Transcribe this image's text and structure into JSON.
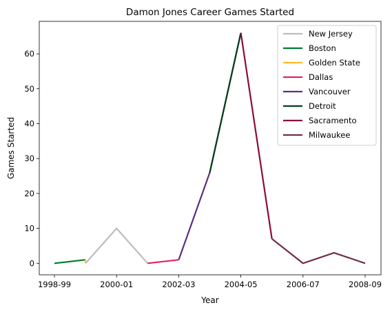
{
  "chart_data": {
    "type": "line",
    "title": "Damon Jones Career Games Started",
    "xlabel": "Year",
    "ylabel": "Games Started",
    "x_ticks": [
      "1998-99",
      "2000-01",
      "2002-03",
      "2004-05",
      "2006-07",
      "2008-09"
    ],
    "y_ticks": [
      0,
      10,
      20,
      30,
      40,
      50,
      60
    ],
    "ylim": [
      -3.3,
      69.3
    ],
    "grid": false,
    "legend_position": "top-right",
    "series": [
      {
        "name": "New Jersey",
        "color": "#BDBDBD",
        "points": [
          {
            "season": "1999-00",
            "value": 0
          },
          {
            "season": "2000-01",
            "value": 10
          },
          {
            "season": "2001-02",
            "value": 0
          }
        ]
      },
      {
        "name": "Boston",
        "color": "#007A33",
        "points": [
          {
            "season": "1998-99",
            "value": 0
          },
          {
            "season": "1999-00",
            "value": 1
          }
        ]
      },
      {
        "name": "Golden State",
        "color": "#FDB927",
        "points": [
          {
            "season": "1999-00",
            "value": 1
          },
          {
            "season": "1999-00",
            "value": 0
          }
        ]
      },
      {
        "name": "Dallas",
        "color": "#E0245E",
        "points": [
          {
            "season": "2001-02",
            "value": 0
          },
          {
            "season": "2002-03",
            "value": 1
          }
        ]
      },
      {
        "name": "Vancouver",
        "color": "#5C2D82",
        "points": [
          {
            "season": "2002-03",
            "value": 1
          },
          {
            "season": "2003-04",
            "value": 26
          },
          {
            "season": "2004-05",
            "value": 66
          }
        ]
      },
      {
        "name": "Detroit",
        "color": "#00401A",
        "points": [
          {
            "season": "2003-04",
            "value": 26
          },
          {
            "season": "2004-05",
            "value": 66
          }
        ]
      },
      {
        "name": "Sacramento",
        "color": "#8C0A3C",
        "points": [
          {
            "season": "2004-05",
            "value": 66
          },
          {
            "season": "2005-06",
            "value": 7
          }
        ]
      },
      {
        "name": "Milwaukee",
        "color": "#702F3F",
        "points": [
          {
            "season": "2005-06",
            "value": 7
          },
          {
            "season": "2006-07",
            "value": 0
          },
          {
            "season": "2007-08",
            "value": 3
          },
          {
            "season": "2008-09",
            "value": 0
          }
        ]
      }
    ]
  }
}
